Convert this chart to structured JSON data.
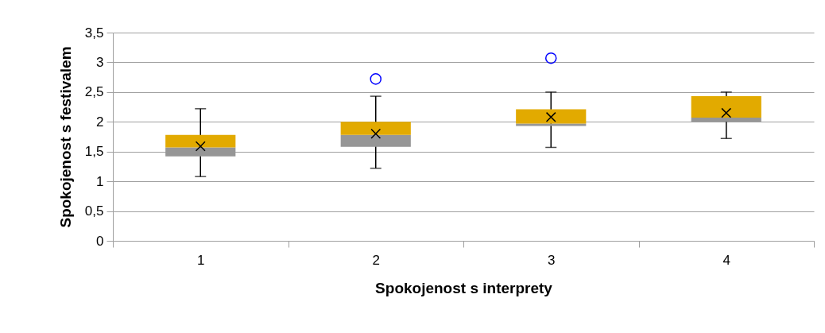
{
  "chart_data": {
    "type": "box",
    "xlabel": "Spokojenost s interprety",
    "ylabel": "Spokojenost s festivalem",
    "categories": [
      "1",
      "2",
      "3",
      "4"
    ],
    "boxes": [
      {
        "low": 1.08,
        "q1": 1.42,
        "median": 1.57,
        "q3": 1.78,
        "high": 2.22,
        "mean": 1.59
      },
      {
        "low": 1.22,
        "q1": 1.58,
        "median": 1.78,
        "q3": 2.0,
        "high": 2.43,
        "mean": 1.8,
        "outliers": [
          2.72
        ]
      },
      {
        "low": 1.57,
        "q1": 1.93,
        "median": 1.97,
        "q3": 2.21,
        "high": 2.5,
        "mean": 2.08,
        "outliers": [
          3.07
        ]
      },
      {
        "low": 1.72,
        "q1": 2.0,
        "median": 2.07,
        "q3": 2.43,
        "high": 2.5,
        "mean": 2.15
      }
    ],
    "ylim": [
      0,
      3.5
    ],
    "yticks": [
      0,
      {
        "value": 0.5,
        "label": "0,5"
      },
      1,
      {
        "value": 1.5,
        "label": "1,5"
      },
      2,
      {
        "value": 2.5,
        "label": "2,5"
      },
      3,
      {
        "value": 3.5,
        "label": "3,5"
      }
    ],
    "grid": "y"
  }
}
